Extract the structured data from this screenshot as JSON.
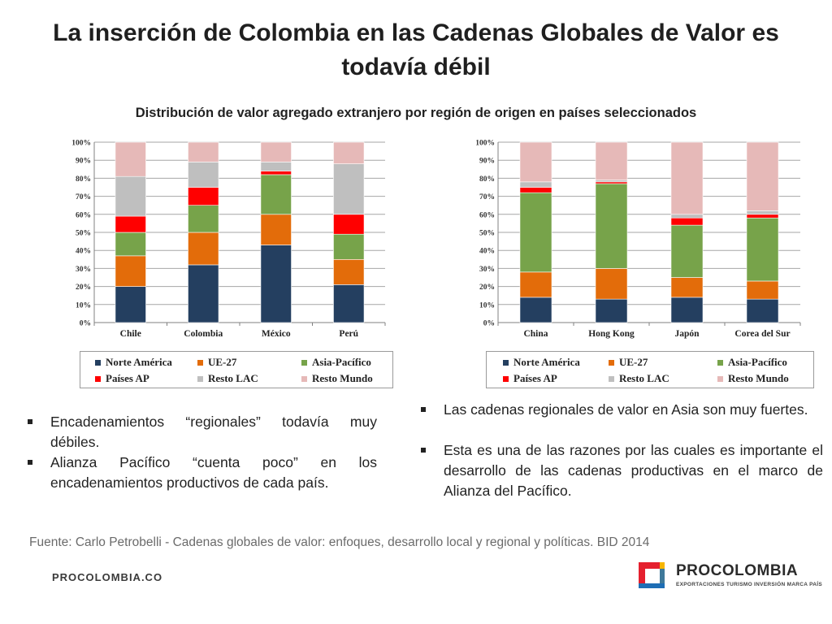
{
  "slide": {
    "title": "La inserción de Colombia en las Cadenas Globales de Valor es todavía débil",
    "subtitle": "Distribución de valor agregado extranjero por región de origen en países seleccionados"
  },
  "colors": {
    "Norte América": "#243f60",
    "UE-27": "#e36c0a",
    "Asia-Pacífico": "#77a34a",
    "Países AP": "#ff0000",
    "Resto LAC": "#bfbfbf",
    "Resto Mundo": "#e6b9b8"
  },
  "legend": {
    "items": [
      "Norte América",
      "UE-27",
      "Asia-Pacífico",
      "Países AP",
      "Resto LAC",
      "Resto Mundo"
    ]
  },
  "chart_data": [
    {
      "type": "bar",
      "stacked": true,
      "categories": [
        "Chile",
        "Colombia",
        "México",
        "Perú"
      ],
      "series": [
        {
          "name": "Norte América",
          "values": [
            20,
            32,
            43,
            21
          ]
        },
        {
          "name": "UE-27",
          "values": [
            17,
            18,
            17,
            14
          ]
        },
        {
          "name": "Asia-Pacífico",
          "values": [
            13,
            15,
            22,
            14
          ]
        },
        {
          "name": "Países AP",
          "values": [
            9,
            10,
            2,
            11
          ]
        },
        {
          "name": "Resto LAC",
          "values": [
            22,
            14,
            5,
            28
          ]
        },
        {
          "name": "Resto Mundo",
          "values": [
            19,
            11,
            11,
            12
          ]
        }
      ],
      "ylim": [
        0,
        100
      ],
      "yticks": [
        "0%",
        "10%",
        "20%",
        "30%",
        "40%",
        "50%",
        "60%",
        "70%",
        "80%",
        "90%",
        "100%"
      ],
      "grid": true,
      "legend": "bottom"
    },
    {
      "type": "bar",
      "stacked": true,
      "categories": [
        "China",
        "Hong Kong",
        "Japón",
        "Corea del Sur"
      ],
      "series": [
        {
          "name": "Norte América",
          "values": [
            14,
            13,
            14,
            13
          ]
        },
        {
          "name": "UE-27",
          "values": [
            14,
            17,
            11,
            10
          ]
        },
        {
          "name": "Asia-Pacífico",
          "values": [
            44,
            47,
            29,
            35
          ]
        },
        {
          "name": "Países AP",
          "values": [
            3,
            1,
            4,
            2
          ]
        },
        {
          "name": "Resto LAC",
          "values": [
            3,
            1,
            2,
            2
          ]
        },
        {
          "name": "Resto Mundo",
          "values": [
            22,
            21,
            40,
            38
          ]
        }
      ],
      "ylim": [
        0,
        100
      ],
      "yticks": [
        "0%",
        "10%",
        "20%",
        "30%",
        "40%",
        "50%",
        "60%",
        "70%",
        "80%",
        "90%",
        "100%"
      ],
      "grid": true,
      "legend": "bottom"
    }
  ],
  "bullets_left": [
    "Encadenamientos “regionales” todavía muy débiles.",
    "Alianza Pacífico “cuenta poco” en los encadenamientos productivos de cada país."
  ],
  "bullets_right": [
    "Las cadenas regionales de valor en Asia son muy fuertes.",
    "Esta es una de las razones por las cuales es importante el desarrollo de las cadenas productivas en el marco de Alianza del Pacífico."
  ],
  "footer": {
    "source": "Fuente: Carlo Petrobelli - Cadenas globales de valor: enfoques, desarrollo local y regional y políticas. BID 2014",
    "url": "PROCOLOMBIA.CO",
    "logo_name": "PROCOLOMBIA",
    "logo_tagline": "EXPORTACIONES TURISMO INVERSIÓN MARCA PAÍS"
  }
}
